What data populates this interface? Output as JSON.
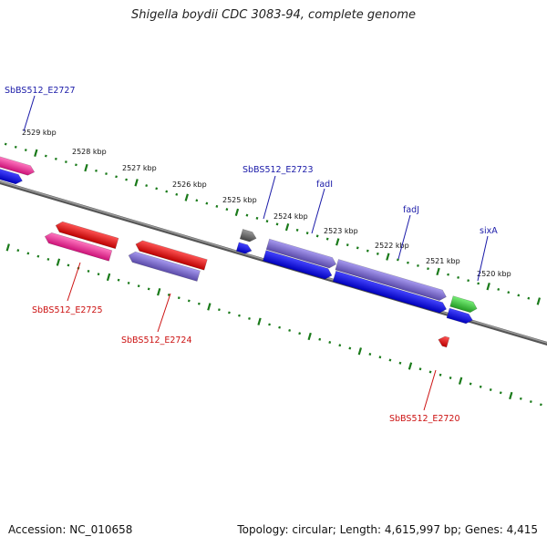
{
  "title": "Shigella boydii CDC 3083-94, complete genome",
  "footer": {
    "accession": "Accession: NC_010658",
    "topology": "Topology: circular; Length: 4,615,997 bp; Genes: 4,415"
  },
  "colors": {
    "backbone": "#7a7a7a",
    "ticks": "#1a7a1a",
    "label_forward": "#1a1aa8",
    "label_reverse": "#cc1111",
    "hypothetical": "#ee3399",
    "enzyme": "#ee1111",
    "fatty_acid": "#7a6acc",
    "transport": "#1111ee",
    "gray_gene": "#666666",
    "green_gene": "#33bb33"
  },
  "tick_labels": [
    "2529 kbp",
    "2528 kbp",
    "2527 kbp",
    "2526 kbp",
    "2525 kbp",
    "2524 kbp",
    "2523 kbp",
    "2522 kbp",
    "2521 kbp",
    "2520 kbp"
  ],
  "gene_labels": [
    "SbBS512_E2727",
    "SbBS512_E2723",
    "fadI",
    "fadJ",
    "sixA",
    "SbBS512_E2725",
    "SbBS512_E2724",
    "SbBS512_E2720"
  ]
}
